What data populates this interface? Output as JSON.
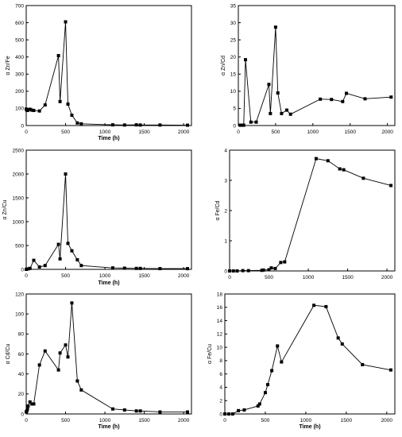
{
  "chart_data": [
    {
      "type": "line",
      "xlabel": "Time (h)",
      "ylabel": "α Zn/Fe",
      "xlim": [
        0,
        2100
      ],
      "ylim": [
        0,
        700
      ],
      "xticks": [
        0,
        500,
        1000,
        1500,
        2000
      ],
      "yticks": [
        0,
        100,
        200,
        300,
        400,
        500,
        600,
        700
      ],
      "grid": false,
      "marker": "square",
      "x": [
        0,
        8,
        16,
        24,
        48,
        72,
        96,
        168,
        240,
        410,
        430,
        500,
        530,
        580,
        650,
        700,
        1100,
        1250,
        1400,
        1450,
        1700,
        2050
      ],
      "y": [
        96,
        90,
        88,
        92,
        95,
        90,
        88,
        85,
        120,
        408,
        140,
        605,
        125,
        60,
        15,
        10,
        4,
        3,
        4,
        3,
        3,
        2
      ]
    },
    {
      "type": "line",
      "xlabel": "",
      "ylabel": "α Zn/Cd",
      "xlim": [
        0,
        2100
      ],
      "ylim": [
        0,
        35
      ],
      "xticks": [
        0,
        500,
        1000,
        1500,
        2000
      ],
      "yticks": [
        0,
        5,
        10,
        15,
        20,
        25,
        30,
        35
      ],
      "grid": false,
      "marker": "square",
      "x": [
        24,
        48,
        72,
        96,
        168,
        240,
        410,
        430,
        500,
        530,
        580,
        650,
        700,
        1100,
        1250,
        1400,
        1450,
        1700,
        2050
      ],
      "y": [
        0.1,
        0.1,
        0.1,
        19.2,
        1.0,
        1.0,
        12.0,
        3.5,
        28.7,
        9.5,
        3.5,
        4.5,
        3.3,
        7.7,
        7.6,
        7.0,
        9.4,
        7.8,
        8.3
      ]
    },
    {
      "type": "line",
      "xlabel": "Time (h)",
      "ylabel": "α Zn/Cu",
      "xlim": [
        0,
        2100
      ],
      "ylim": [
        0,
        2500
      ],
      "xticks": [
        0,
        500,
        1000,
        1500,
        2000
      ],
      "yticks": [
        0,
        500,
        1000,
        1500,
        2000,
        2500
      ],
      "grid": false,
      "marker": "square",
      "x": [
        0,
        24,
        48,
        96,
        168,
        240,
        410,
        430,
        500,
        530,
        580,
        650,
        700,
        1100,
        1250,
        1400,
        1450,
        1700,
        2050
      ],
      "y": [
        0,
        10,
        20,
        190,
        50,
        80,
        525,
        220,
        2000,
        545,
        390,
        200,
        80,
        30,
        25,
        20,
        20,
        15,
        15
      ]
    },
    {
      "type": "line",
      "xlabel": "",
      "ylabel": "α Fe/Cd",
      "xlim": [
        0,
        2100
      ],
      "ylim": [
        0,
        4
      ],
      "xticks": [
        0,
        500,
        1000,
        1500,
        2000
      ],
      "yticks": [
        0,
        1,
        2,
        3,
        4
      ],
      "grid": false,
      "marker": "square",
      "x": [
        0,
        48,
        96,
        168,
        240,
        410,
        430,
        500,
        530,
        580,
        650,
        700,
        1100,
        1250,
        1400,
        1450,
        1700,
        2050
      ],
      "y": [
        0.0,
        0.0,
        0.0,
        0.01,
        0.01,
        0.02,
        0.03,
        0.04,
        0.1,
        0.08,
        0.28,
        0.3,
        3.72,
        3.65,
        3.38,
        3.35,
        3.07,
        2.83
      ]
    },
    {
      "type": "line",
      "xlabel": "Time (h)",
      "ylabel": "α Cd/Cu",
      "xlim": [
        0,
        2100
      ],
      "ylim": [
        0,
        120
      ],
      "xticks": [
        0,
        500,
        1000,
        1500,
        2000
      ],
      "yticks": [
        0,
        20,
        40,
        60,
        80,
        100,
        120
      ],
      "grid": false,
      "marker": "square",
      "x": [
        0,
        8,
        16,
        24,
        48,
        72,
        96,
        168,
        240,
        410,
        430,
        500,
        530,
        580,
        650,
        700,
        1100,
        1250,
        1400,
        1450,
        1700,
        2050
      ],
      "y": [
        2,
        3,
        5,
        8,
        12,
        10,
        10,
        49,
        63,
        44,
        61,
        69,
        57,
        111,
        33,
        24,
        5,
        4,
        3,
        3,
        2,
        2
      ]
    },
    {
      "type": "line",
      "xlabel": "Time (h)",
      "ylabel": "α Fe/Cu",
      "xlim": [
        0,
        2100
      ],
      "ylim": [
        0,
        18
      ],
      "xticks": [
        0,
        500,
        1000,
        1500,
        2000
      ],
      "yticks": [
        0,
        2,
        4,
        6,
        8,
        10,
        12,
        14,
        16,
        18
      ],
      "grid": false,
      "marker": "square",
      "x": [
        0,
        48,
        96,
        168,
        240,
        410,
        430,
        500,
        530,
        580,
        650,
        700,
        1100,
        1250,
        1400,
        1450,
        1700,
        2050
      ],
      "y": [
        0.0,
        0.0,
        0.0,
        0.5,
        0.6,
        1.2,
        1.5,
        3.2,
        4.4,
        6.5,
        10.2,
        7.8,
        16.3,
        16.1,
        11.4,
        10.5,
        7.4,
        6.6
      ]
    }
  ]
}
